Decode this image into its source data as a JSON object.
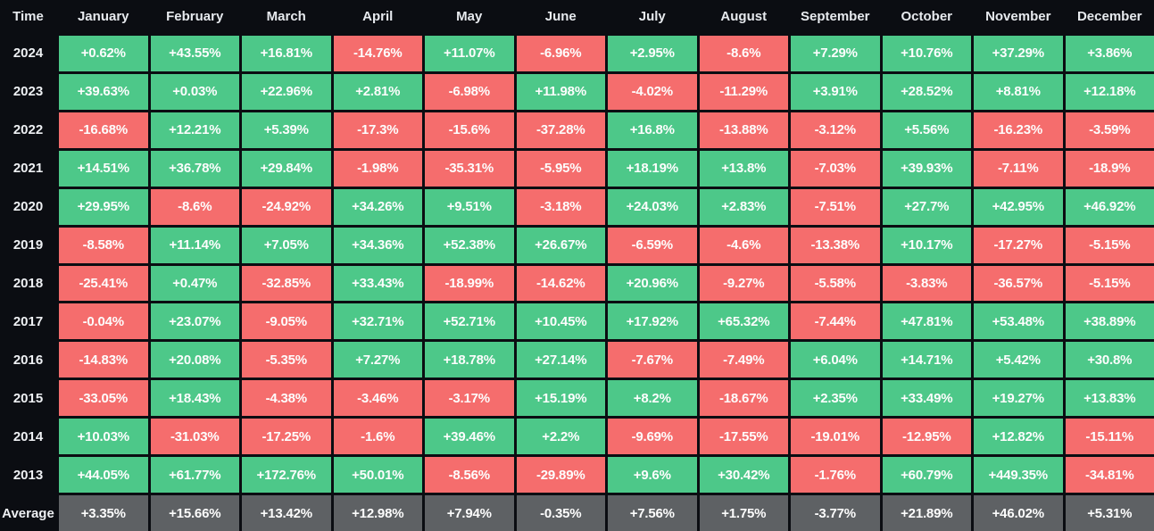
{
  "chart_data": {
    "type": "heatmap",
    "title": "",
    "corner_label": "Time",
    "columns": [
      "January",
      "February",
      "March",
      "April",
      "May",
      "June",
      "July",
      "August",
      "September",
      "October",
      "November",
      "December"
    ],
    "rows": [
      {
        "label": "2024",
        "kind": "year",
        "values": [
          "+0.62%",
          "+43.55%",
          "+16.81%",
          "-14.76%",
          "+11.07%",
          "-6.96%",
          "+2.95%",
          "-8.6%",
          "+7.29%",
          "+10.76%",
          "+37.29%",
          "+3.86%"
        ]
      },
      {
        "label": "2023",
        "kind": "year",
        "values": [
          "+39.63%",
          "+0.03%",
          "+22.96%",
          "+2.81%",
          "-6.98%",
          "+11.98%",
          "-4.02%",
          "-11.29%",
          "+3.91%",
          "+28.52%",
          "+8.81%",
          "+12.18%"
        ]
      },
      {
        "label": "2022",
        "kind": "year",
        "values": [
          "-16.68%",
          "+12.21%",
          "+5.39%",
          "-17.3%",
          "-15.6%",
          "-37.28%",
          "+16.8%",
          "-13.88%",
          "-3.12%",
          "+5.56%",
          "-16.23%",
          "-3.59%"
        ]
      },
      {
        "label": "2021",
        "kind": "year",
        "values": [
          "+14.51%",
          "+36.78%",
          "+29.84%",
          "-1.98%",
          "-35.31%",
          "-5.95%",
          "+18.19%",
          "+13.8%",
          "-7.03%",
          "+39.93%",
          "-7.11%",
          "-18.9%"
        ]
      },
      {
        "label": "2020",
        "kind": "year",
        "values": [
          "+29.95%",
          "-8.6%",
          "-24.92%",
          "+34.26%",
          "+9.51%",
          "-3.18%",
          "+24.03%",
          "+2.83%",
          "-7.51%",
          "+27.7%",
          "+42.95%",
          "+46.92%"
        ]
      },
      {
        "label": "2019",
        "kind": "year",
        "values": [
          "-8.58%",
          "+11.14%",
          "+7.05%",
          "+34.36%",
          "+52.38%",
          "+26.67%",
          "-6.59%",
          "-4.6%",
          "-13.38%",
          "+10.17%",
          "-17.27%",
          "-5.15%"
        ]
      },
      {
        "label": "2018",
        "kind": "year",
        "values": [
          "-25.41%",
          "+0.47%",
          "-32.85%",
          "+33.43%",
          "-18.99%",
          "-14.62%",
          "+20.96%",
          "-9.27%",
          "-5.58%",
          "-3.83%",
          "-36.57%",
          "-5.15%"
        ]
      },
      {
        "label": "2017",
        "kind": "year",
        "values": [
          "-0.04%",
          "+23.07%",
          "-9.05%",
          "+32.71%",
          "+52.71%",
          "+10.45%",
          "+17.92%",
          "+65.32%",
          "-7.44%",
          "+47.81%",
          "+53.48%",
          "+38.89%"
        ]
      },
      {
        "label": "2016",
        "kind": "year",
        "values": [
          "-14.83%",
          "+20.08%",
          "-5.35%",
          "+7.27%",
          "+18.78%",
          "+27.14%",
          "-7.67%",
          "-7.49%",
          "+6.04%",
          "+14.71%",
          "+5.42%",
          "+30.8%"
        ]
      },
      {
        "label": "2015",
        "kind": "year",
        "values": [
          "-33.05%",
          "+18.43%",
          "-4.38%",
          "-3.46%",
          "-3.17%",
          "+15.19%",
          "+8.2%",
          "-18.67%",
          "+2.35%",
          "+33.49%",
          "+19.27%",
          "+13.83%"
        ]
      },
      {
        "label": "2014",
        "kind": "year",
        "values": [
          "+10.03%",
          "-31.03%",
          "-17.25%",
          "-1.6%",
          "+39.46%",
          "+2.2%",
          "-9.69%",
          "-17.55%",
          "-19.01%",
          "-12.95%",
          "+12.82%",
          "-15.11%"
        ]
      },
      {
        "label": "2013",
        "kind": "year",
        "values": [
          "+44.05%",
          "+61.77%",
          "+172.76%",
          "+50.01%",
          "-8.56%",
          "-29.89%",
          "+9.6%",
          "+30.42%",
          "-1.76%",
          "+60.79%",
          "+449.35%",
          "-34.81%"
        ]
      },
      {
        "label": "Average",
        "kind": "average",
        "values": [
          "+3.35%",
          "+15.66%",
          "+13.42%",
          "+12.98%",
          "+7.94%",
          "-0.35%",
          "+7.56%",
          "+1.75%",
          "-3.77%",
          "+21.89%",
          "+46.02%",
          "+5.31%"
        ]
      }
    ],
    "colors": {
      "positive": "#4dc889",
      "negative": "#f56d6d",
      "average": "#5e6164",
      "background": "#0b0d12",
      "cell_text": "#fdfdfd",
      "header_text": "#e7eaee"
    },
    "layout": {
      "legend": "none",
      "grid": "3px black gaps between cells"
    }
  }
}
